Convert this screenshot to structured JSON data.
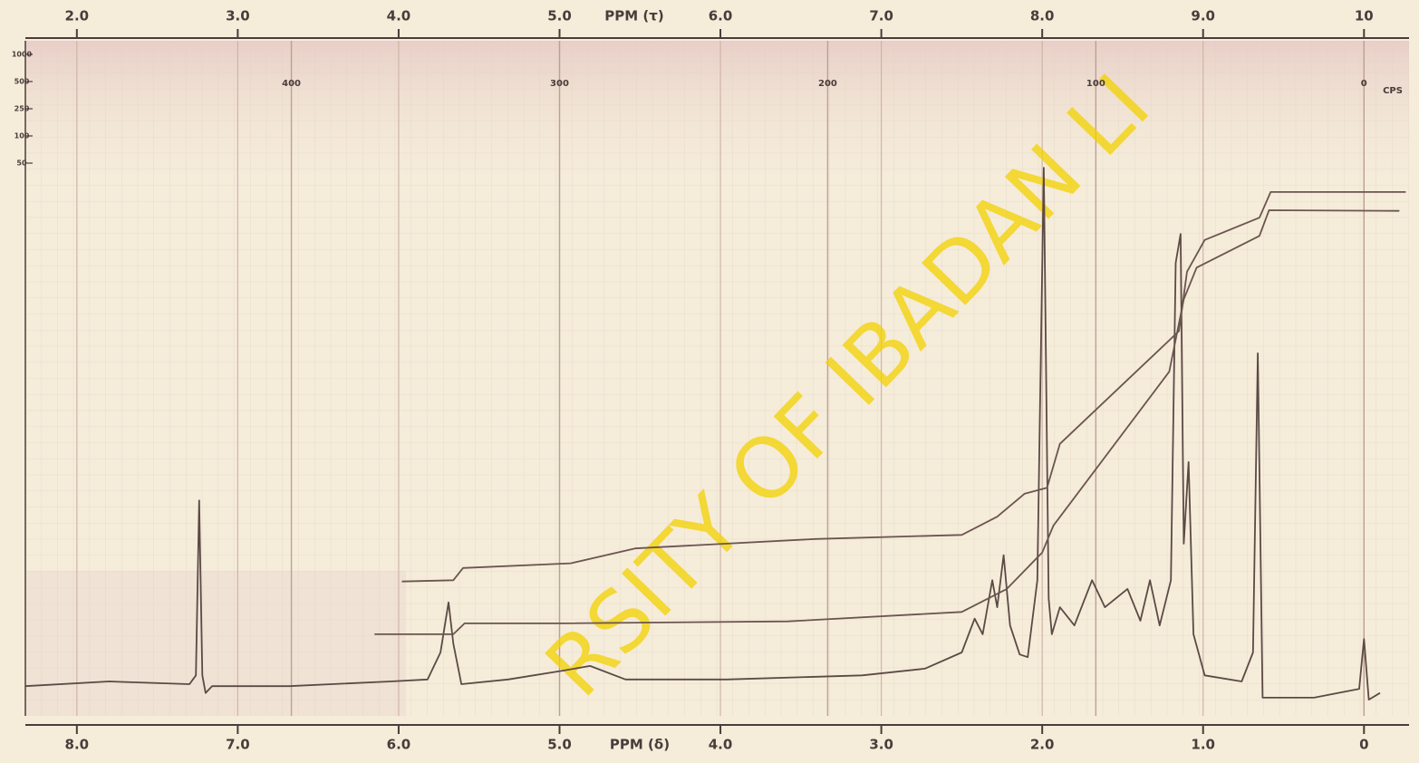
{
  "chart_data": {
    "type": "line",
    "xlabel": "PPM (δ)",
    "x2label": "PPM (τ)",
    "cps_label": "CPS",
    "watermark": "RSITY OF IBADAN LI",
    "xlim": [
      8.32,
      -0.28
    ],
    "xticks": [
      {
        "value": 8,
        "label": "8.0"
      },
      {
        "value": 7,
        "label": "7.0"
      },
      {
        "value": 6,
        "label": "6.0"
      },
      {
        "value": 5,
        "label": "5.0"
      },
      {
        "value": 4,
        "label": "4.0"
      },
      {
        "value": 3,
        "label": "3.0"
      },
      {
        "value": 2,
        "label": "2.0"
      },
      {
        "value": 1,
        "label": "1.0"
      },
      0
    ],
    "x2lim": [
      1.68,
      10.28
    ],
    "x2ticks": [
      {
        "value": 2,
        "label": "2.0"
      },
      {
        "value": 3,
        "label": "3.0"
      },
      {
        "value": 4,
        "label": "4.0"
      },
      {
        "value": 5,
        "label": "5.0"
      },
      {
        "value": 6,
        "label": "6.0"
      },
      {
        "value": 7,
        "label": "7.0"
      },
      {
        "value": 8,
        "label": "8.0"
      },
      {
        "value": 9,
        "label": "9.0"
      },
      10
    ],
    "cps_lim": [
      499.2,
      -16.8
    ],
    "cps_ticks": [
      400,
      300,
      200,
      100,
      0
    ],
    "sweep_width_labels": [
      1000,
      500,
      250,
      100,
      50
    ],
    "ylim": [
      0,
      100
    ],
    "grid": true,
    "series": [
      {
        "color": "#5b4a45",
        "x": [
          8.32,
          7.8,
          7.3,
          7.26,
          7.24,
          7.22,
          7.2,
          7.16,
          6.68,
          6.05,
          5.82,
          5.74,
          5.69,
          5.66,
          5.61,
          5.32,
          4.98,
          4.81,
          4.59,
          3.96,
          3.12,
          2.73,
          2.5,
          2.42,
          2.37,
          2.31,
          2.28,
          2.24,
          2.2,
          2.14,
          2.09,
          2.03,
          1.99,
          1.96,
          1.94,
          1.89,
          1.8,
          1.69,
          1.61,
          1.47,
          1.39,
          1.33,
          1.27,
          1.2,
          1.17,
          1.14,
          1.12,
          1.09,
          1.06,
          0.99,
          0.76,
          0.69,
          0.66,
          0.63,
          0.31,
          0.03,
          0,
          -0.03,
          -0.1
        ],
        "values": [
          4.4,
          5.1,
          4.7,
          6.0,
          31.9,
          6.0,
          3.4,
          4.4,
          4.4,
          5.1,
          5.4,
          9.4,
          16.8,
          10.7,
          4.7,
          5.4,
          6.7,
          7.4,
          5.4,
          5.4,
          6.0,
          7.0,
          9.4,
          14.4,
          12.1,
          20.1,
          16.1,
          23.8,
          13.4,
          9.1,
          8.7,
          20.1,
          81.2,
          17.4,
          12.1,
          16.1,
          13.4,
          20.1,
          16.1,
          18.8,
          14.1,
          20.1,
          13.4,
          20.1,
          67.1,
          71.4,
          25.5,
          37.6,
          12.1,
          6.0,
          5.1,
          9.4,
          53.7,
          2.7,
          2.7,
          4.0,
          11.4,
          2.4,
          3.4
        ]
      },
      {
        "color": "#6b5550",
        "x": [
          5.98,
          5.66,
          5.6,
          4.93,
          4.53,
          3.41,
          2.5,
          2.28,
          2.11,
          1.97,
          1.89,
          1.15,
          1.1,
          0.99,
          0.65,
          0.58,
          -0.26
        ],
        "values": [
          19.9,
          20.1,
          21.9,
          22.6,
          24.8,
          26.2,
          26.8,
          29.5,
          32.9,
          33.8,
          40.3,
          57.0,
          65.8,
          70.5,
          73.8,
          77.6,
          77.6
        ]
      },
      {
        "color": "#6b5550",
        "x": [
          6.15,
          5.66,
          5.59,
          4.98,
          3.58,
          2.5,
          2.22,
          2.0,
          1.93,
          1.21,
          1.12,
          1.04,
          0.65,
          0.59,
          -0.22
        ],
        "values": [
          12.1,
          12.1,
          13.7,
          13.7,
          14.0,
          15.4,
          18.8,
          24.2,
          28.2,
          51.0,
          61.7,
          66.4,
          71.1,
          74.9,
          74.8
        ]
      }
    ]
  }
}
